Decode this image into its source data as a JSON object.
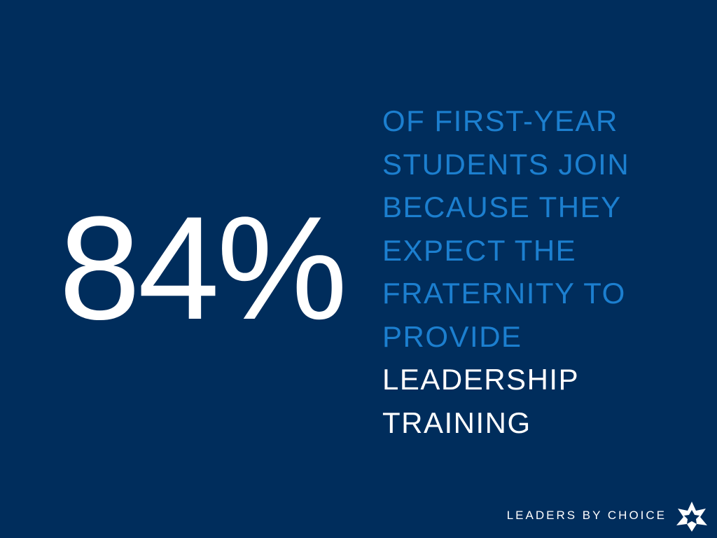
{
  "stat": "84%",
  "statement": {
    "highlight_lines": [
      "OF FIRST-YEAR",
      "STUDENTS JOIN",
      "BECAUSE THEY",
      "EXPECT THE",
      "FRATERNITY TO",
      "PROVIDE"
    ],
    "emphasis_lines": [
      "LEADERSHIP",
      "TRAINING"
    ]
  },
  "footer": "LEADERS BY CHOICE"
}
